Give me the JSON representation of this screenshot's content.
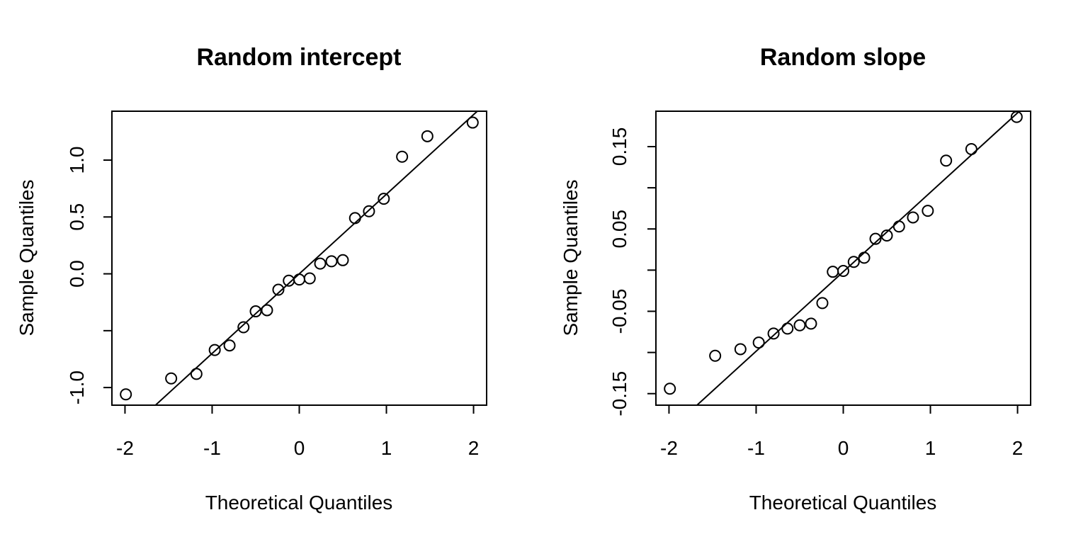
{
  "chart_data": [
    {
      "type": "scatter",
      "title": "Random intercept",
      "xlabel": "Theoretical Quantiles",
      "ylabel": "Sample Quantiles",
      "xlim": [
        -2.15,
        2.15
      ],
      "ylim": [
        -1.155,
        1.43
      ],
      "xticks": [
        {
          "v": -2,
          "label": "-2"
        },
        {
          "v": -1,
          "label": "-1"
        },
        {
          "v": 0,
          "label": "0"
        },
        {
          "v": 1,
          "label": "1"
        },
        {
          "v": 2,
          "label": "2"
        }
      ],
      "yticks": [
        {
          "v": -1.0,
          "label": "-1.0"
        },
        {
          "v": -0.5,
          "label": ""
        },
        {
          "v": 0.0,
          "label": "0.0"
        },
        {
          "v": 0.5,
          "label": "0.5"
        },
        {
          "v": 1.0,
          "label": "1.0"
        }
      ],
      "grid": false,
      "points": [
        {
          "x": -1.99,
          "y": -1.06
        },
        {
          "x": -1.47,
          "y": -0.92
        },
        {
          "x": -1.18,
          "y": -0.88
        },
        {
          "x": -0.97,
          "y": -0.67
        },
        {
          "x": -0.8,
          "y": -0.63
        },
        {
          "x": -0.64,
          "y": -0.47
        },
        {
          "x": -0.5,
          "y": -0.33
        },
        {
          "x": -0.37,
          "y": -0.32
        },
        {
          "x": -0.24,
          "y": -0.14
        },
        {
          "x": -0.12,
          "y": -0.06
        },
        {
          "x": 0.0,
          "y": -0.05
        },
        {
          "x": 0.12,
          "y": -0.04
        },
        {
          "x": 0.24,
          "y": 0.09
        },
        {
          "x": 0.37,
          "y": 0.11
        },
        {
          "x": 0.5,
          "y": 0.12
        },
        {
          "x": 0.64,
          "y": 0.49
        },
        {
          "x": 0.8,
          "y": 0.55
        },
        {
          "x": 0.97,
          "y": 0.66
        },
        {
          "x": 1.18,
          "y": 1.03
        },
        {
          "x": 1.47,
          "y": 1.21
        },
        {
          "x": 1.99,
          "y": 1.33
        }
      ],
      "qqline": {
        "slope": 0.7,
        "intercept": 0.0
      }
    },
    {
      "type": "scatter",
      "title": "Random slope",
      "xlabel": "Theoretical Quantiles",
      "ylabel": "Sample Quantiles",
      "xlim": [
        -2.15,
        2.15
      ],
      "ylim": [
        -0.164,
        0.193
      ],
      "xticks": [
        {
          "v": -2,
          "label": "-2"
        },
        {
          "v": -1,
          "label": "-1"
        },
        {
          "v": 0,
          "label": "0"
        },
        {
          "v": 1,
          "label": "1"
        },
        {
          "v": 2,
          "label": "2"
        }
      ],
      "yticks": [
        {
          "v": -0.15,
          "label": "-0.15"
        },
        {
          "v": -0.1,
          "label": ""
        },
        {
          "v": -0.05,
          "label": "-0.05"
        },
        {
          "v": 0.0,
          "label": ""
        },
        {
          "v": 0.05,
          "label": "0.05"
        },
        {
          "v": 0.1,
          "label": ""
        },
        {
          "v": 0.15,
          "label": "0.15"
        }
      ],
      "grid": false,
      "points": [
        {
          "x": -1.99,
          "y": -0.144
        },
        {
          "x": -1.47,
          "y": -0.104
        },
        {
          "x": -1.18,
          "y": -0.096
        },
        {
          "x": -0.97,
          "y": -0.088
        },
        {
          "x": -0.8,
          "y": -0.077
        },
        {
          "x": -0.64,
          "y": -0.071
        },
        {
          "x": -0.5,
          "y": -0.067
        },
        {
          "x": -0.37,
          "y": -0.065
        },
        {
          "x": -0.24,
          "y": -0.04
        },
        {
          "x": -0.12,
          "y": -0.002
        },
        {
          "x": 0.0,
          "y": -0.001
        },
        {
          "x": 0.12,
          "y": 0.01
        },
        {
          "x": 0.24,
          "y": 0.015
        },
        {
          "x": 0.37,
          "y": 0.038
        },
        {
          "x": 0.5,
          "y": 0.042
        },
        {
          "x": 0.64,
          "y": 0.053
        },
        {
          "x": 0.8,
          "y": 0.064
        },
        {
          "x": 0.97,
          "y": 0.072
        },
        {
          "x": 1.18,
          "y": 0.133
        },
        {
          "x": 1.47,
          "y": 0.147
        },
        {
          "x": 1.99,
          "y": 0.186
        }
      ],
      "qqline": {
        "slope": 0.0965,
        "intercept": -0.002
      }
    }
  ]
}
